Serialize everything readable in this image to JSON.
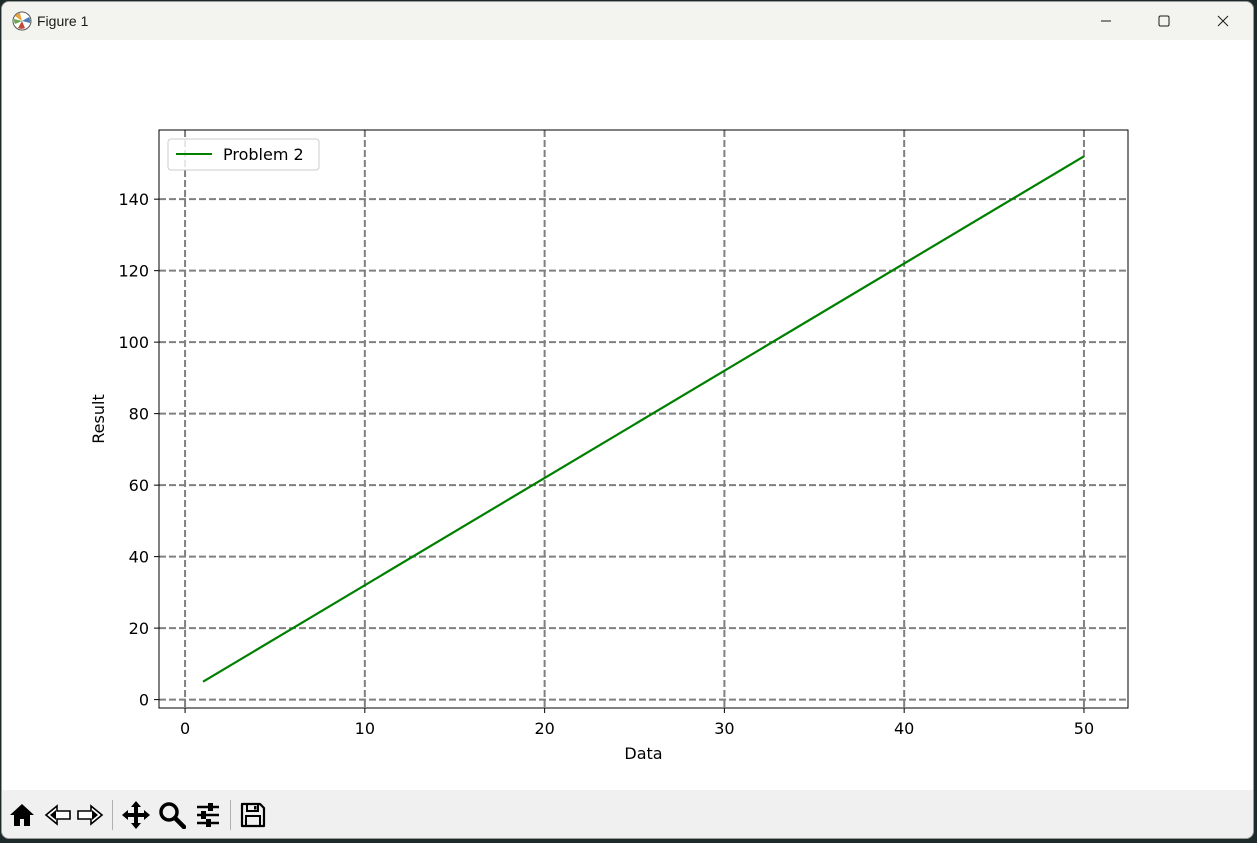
{
  "window": {
    "title": "Figure 1",
    "app_icon": "matplotlib-icon",
    "controls": {
      "minimize": "minimize-icon",
      "maximize": "maximize-icon",
      "close": "close-icon"
    }
  },
  "toolbar": {
    "buttons": [
      {
        "name": "home-icon",
        "tooltip": "Home"
      },
      {
        "name": "back-icon",
        "tooltip": "Back"
      },
      {
        "name": "forward-icon",
        "tooltip": "Forward"
      },
      {
        "name": "pan-icon",
        "tooltip": "Pan"
      },
      {
        "name": "zoom-icon",
        "tooltip": "Zoom"
      },
      {
        "name": "configure-subplots-icon",
        "tooltip": "Configure subplots"
      },
      {
        "name": "save-icon",
        "tooltip": "Save"
      }
    ]
  },
  "chart_data": {
    "type": "line",
    "title": "",
    "xlabel": "Data",
    "ylabel": "Result",
    "xlim": [
      -1.45,
      52.45
    ],
    "ylim": [
      -2.35,
      159.35
    ],
    "xticks": [
      0,
      10,
      20,
      30,
      40,
      50
    ],
    "yticks": [
      0,
      20,
      40,
      60,
      80,
      100,
      120,
      140
    ],
    "grid": true,
    "grid_style": "dashed",
    "grid_color": "#808080",
    "legend_position": "upper-left",
    "series": [
      {
        "name": "Problem 2",
        "color": "#008000",
        "x": [
          1,
          50
        ],
        "y": [
          5,
          152
        ]
      }
    ]
  }
}
